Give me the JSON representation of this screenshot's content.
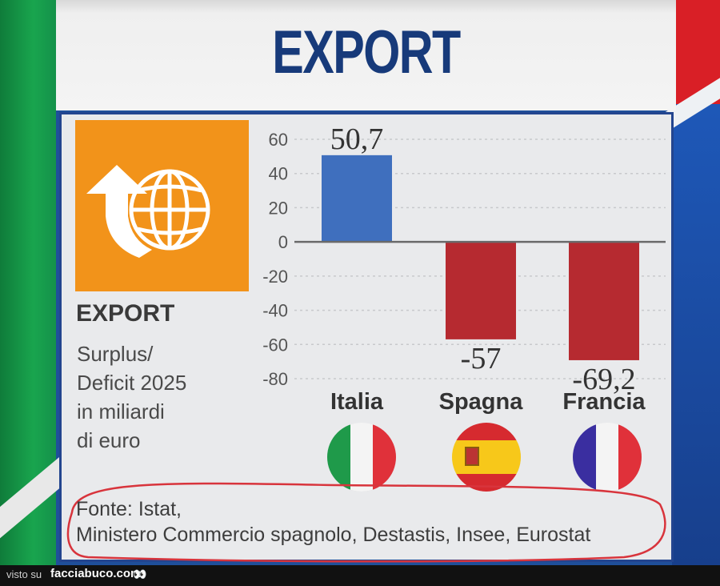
{
  "title": "EXPORT",
  "side": {
    "title": "EXPORT",
    "subtitle_lines": [
      "Surplus/",
      "Deficit 2025",
      "in miliardi",
      "di euro"
    ]
  },
  "chart_data": {
    "type": "bar",
    "categories": [
      "Italia",
      "Spagna",
      "Francia"
    ],
    "values": [
      50.7,
      -57,
      -69.2
    ],
    "value_labels": [
      "50,7",
      "-57",
      "-69,2"
    ],
    "bar_colors": [
      "#3f6fbe",
      "#b62a30",
      "#b62a30"
    ],
    "yticks": [
      60,
      40,
      20,
      0,
      -20,
      -40,
      -60,
      -80
    ],
    "ylim": [
      -80,
      60
    ]
  },
  "icon": "globe-export-icon",
  "flags": [
    "italy-flag-icon",
    "spain-flag-icon",
    "france-flag-icon"
  ],
  "source_lines": [
    "Fonte: Istat,",
    "Ministero Commercio spagnolo, Destastis, Insee, Eurostat"
  ],
  "footer": {
    "prefix": "visto su",
    "brand": "facciabuco.com"
  }
}
